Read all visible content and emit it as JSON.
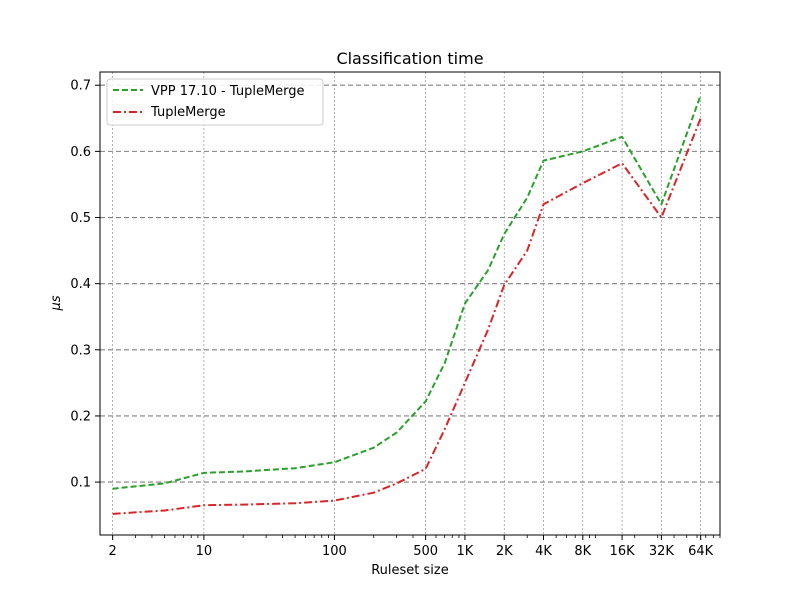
{
  "chart_data": {
    "type": "line",
    "title": "Classification time",
    "xlabel": "Ruleset size",
    "ylabel": "μs",
    "xscale": "log",
    "xlim": [
      1.6,
      90000
    ],
    "ylim": [
      0.02,
      0.72
    ],
    "x_ticks": [
      {
        "value": 2,
        "label": "2"
      },
      {
        "value": 10,
        "label": "10"
      },
      {
        "value": 100,
        "label": "100"
      },
      {
        "value": 500,
        "label": "500"
      },
      {
        "value": 1000,
        "label": "1K"
      },
      {
        "value": 2000,
        "label": "2K"
      },
      {
        "value": 4000,
        "label": "4K"
      },
      {
        "value": 8000,
        "label": "8K"
      },
      {
        "value": 16000,
        "label": "16K"
      },
      {
        "value": 32000,
        "label": "32K"
      },
      {
        "value": 64000,
        "label": "64K"
      }
    ],
    "y_ticks": [
      {
        "value": 0.1,
        "label": "0.1"
      },
      {
        "value": 0.2,
        "label": "0.2"
      },
      {
        "value": 0.3,
        "label": "0.3"
      },
      {
        "value": 0.4,
        "label": "0.4"
      },
      {
        "value": 0.5,
        "label": "0.5"
      },
      {
        "value": 0.6,
        "label": "0.6"
      },
      {
        "value": 0.7,
        "label": "0.7"
      }
    ],
    "grid": true,
    "legend_position": "top-left",
    "series": [
      {
        "name": "VPP 17.10 - TupleMerge",
        "color": "#2ca02c",
        "dash": "dashed",
        "points": [
          [
            2,
            0.09
          ],
          [
            5,
            0.098
          ],
          [
            10,
            0.114
          ],
          [
            20,
            0.116
          ],
          [
            50,
            0.121
          ],
          [
            100,
            0.13
          ],
          [
            200,
            0.152
          ],
          [
            300,
            0.175
          ],
          [
            500,
            0.222
          ],
          [
            700,
            0.28
          ],
          [
            1000,
            0.37
          ],
          [
            1500,
            0.42
          ],
          [
            2000,
            0.475
          ],
          [
            3000,
            0.53
          ],
          [
            4000,
            0.586
          ],
          [
            8000,
            0.6
          ],
          [
            16000,
            0.622
          ],
          [
            32000,
            0.52
          ],
          [
            64000,
            0.685
          ]
        ]
      },
      {
        "name": "TupleMerge",
        "color": "#d62728",
        "dash": "dashdot",
        "points": [
          [
            2,
            0.052
          ],
          [
            5,
            0.057
          ],
          [
            10,
            0.065
          ],
          [
            20,
            0.066
          ],
          [
            50,
            0.068
          ],
          [
            100,
            0.072
          ],
          [
            200,
            0.084
          ],
          [
            300,
            0.098
          ],
          [
            500,
            0.12
          ],
          [
            700,
            0.18
          ],
          [
            1000,
            0.25
          ],
          [
            1500,
            0.33
          ],
          [
            2000,
            0.398
          ],
          [
            3000,
            0.45
          ],
          [
            4000,
            0.52
          ],
          [
            8000,
            0.552
          ],
          [
            16000,
            0.582
          ],
          [
            32000,
            0.5
          ],
          [
            64000,
            0.65
          ]
        ]
      }
    ]
  }
}
